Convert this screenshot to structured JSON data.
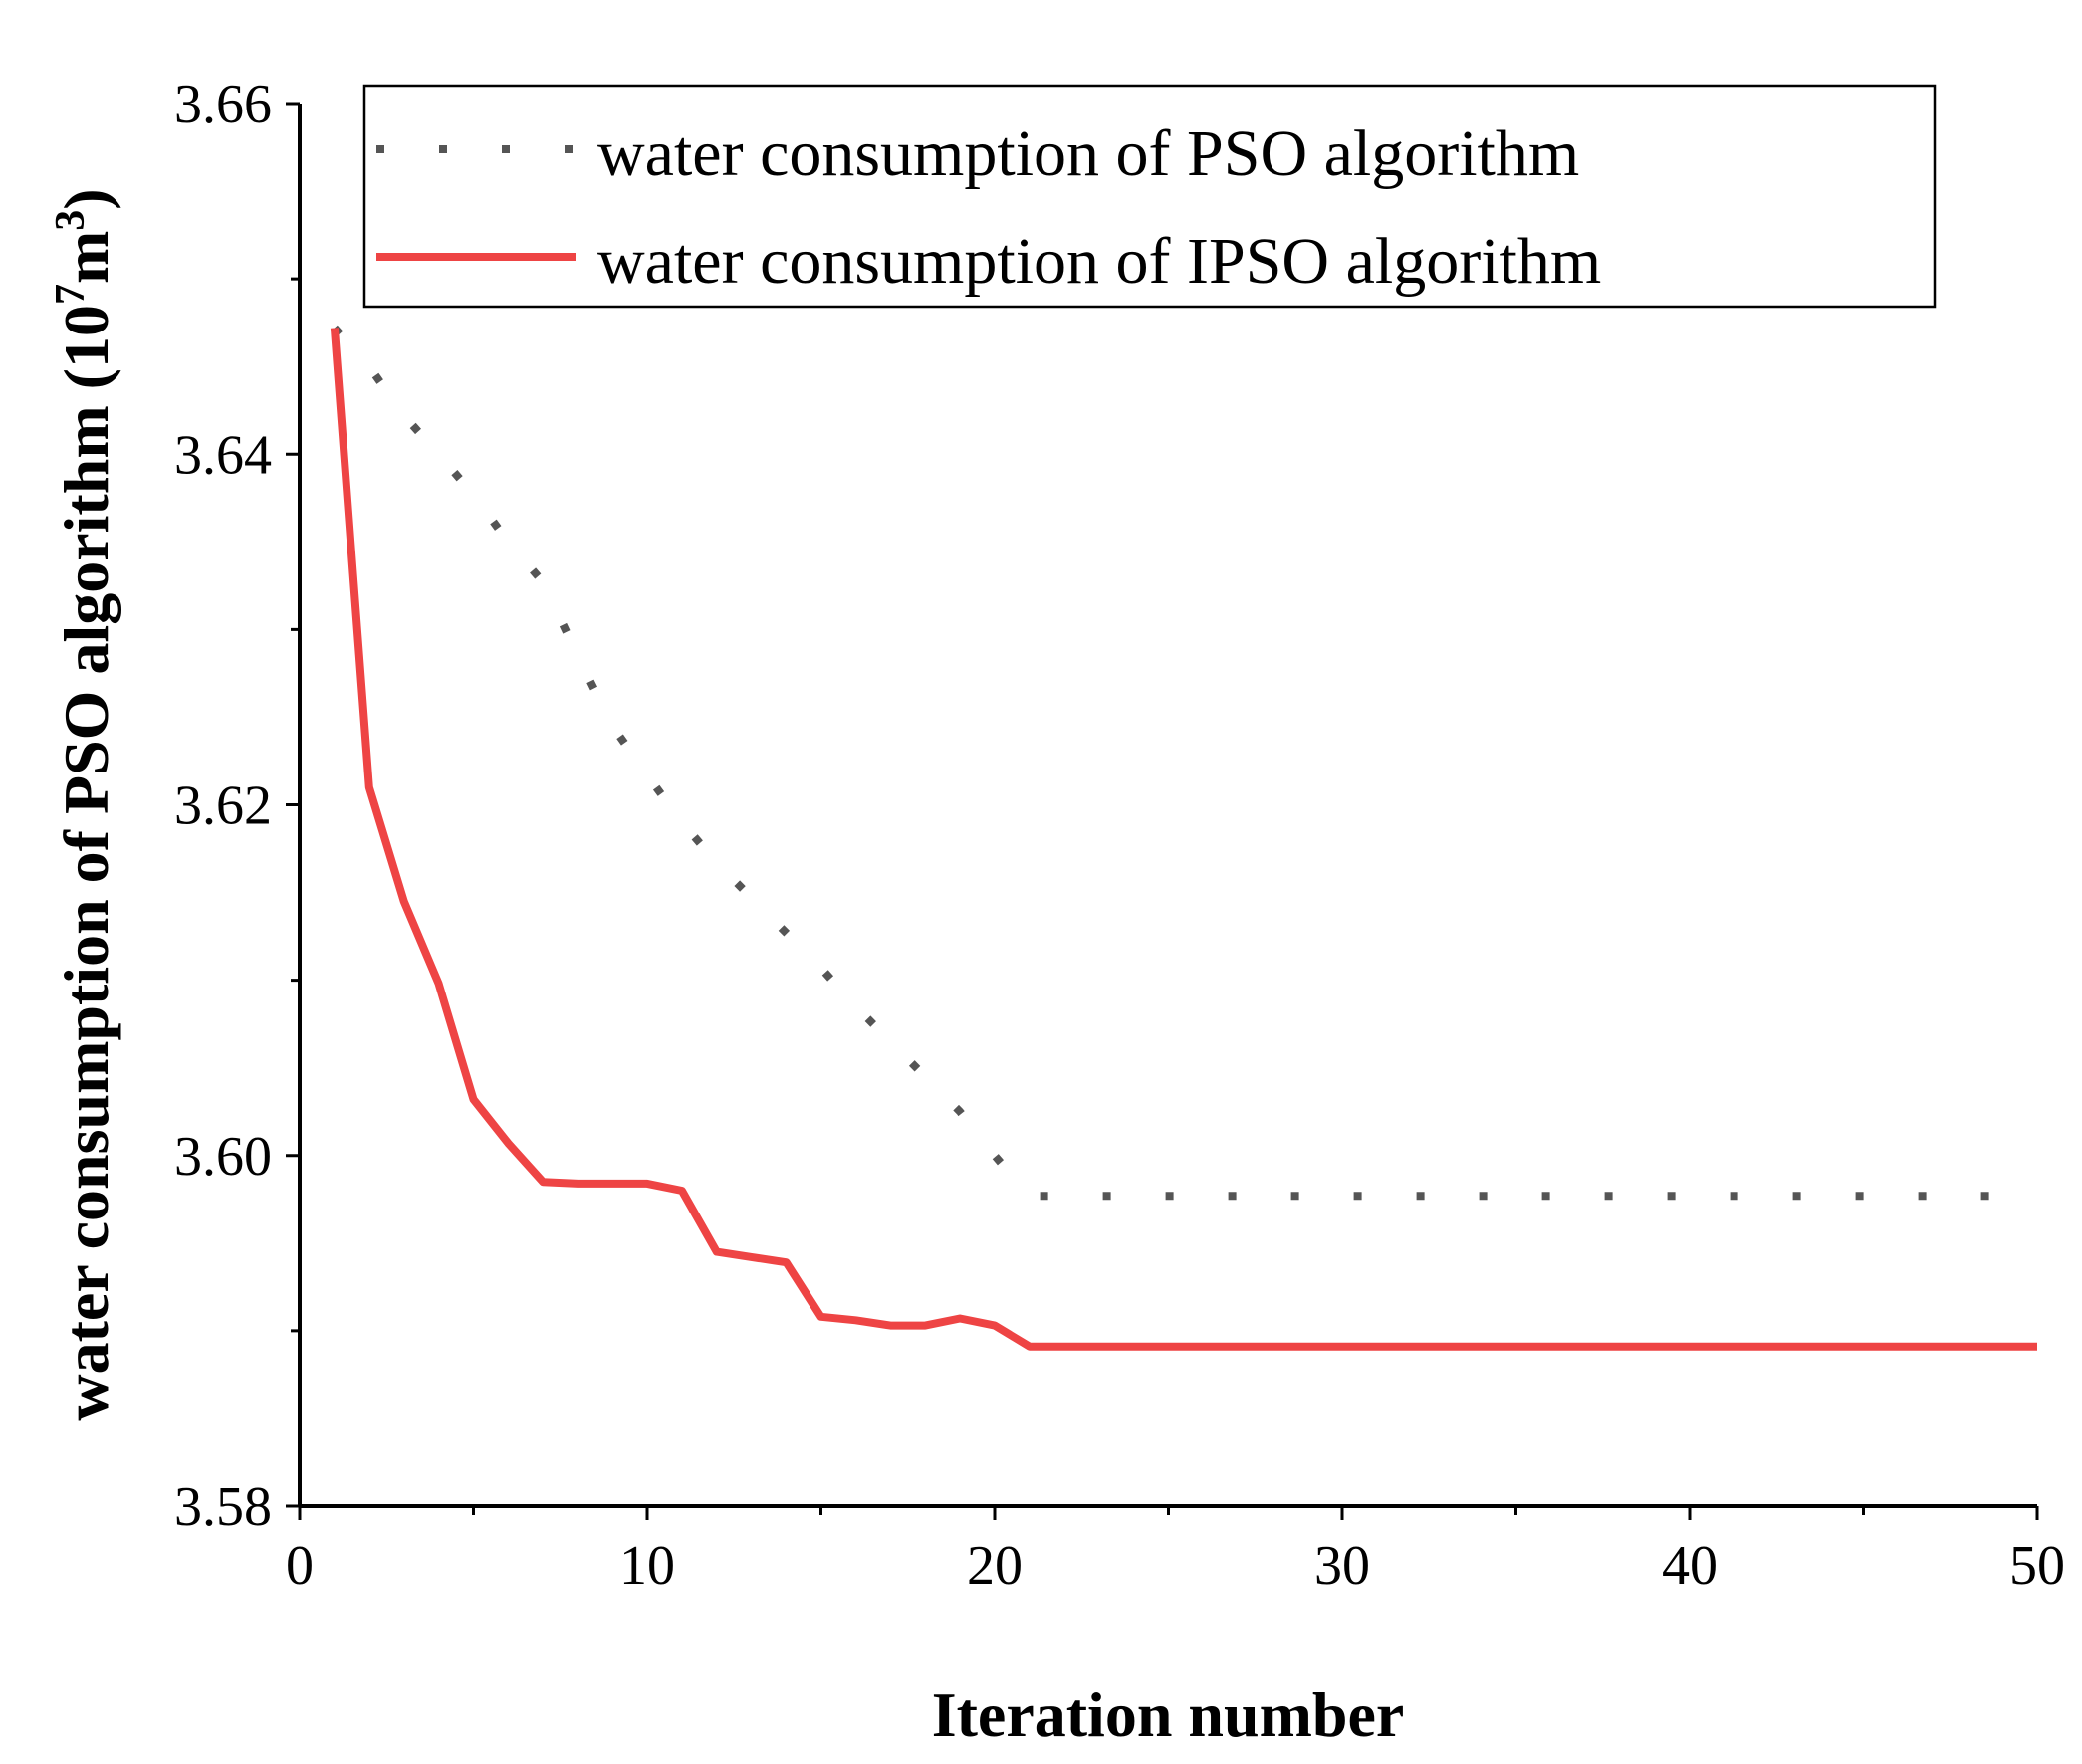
{
  "chart_data": {
    "type": "line",
    "title": "",
    "xlabel": "Iteration number",
    "ylabel_main": "water consumption of PSO algorithm (10",
    "ylabel_exp1": "7",
    "ylabel_unit": "m",
    "ylabel_exp2": "3",
    "ylabel_close": ")",
    "xlim": [
      0,
      50
    ],
    "ylim": [
      3.58,
      3.66
    ],
    "xticks": [
      "0",
      "10",
      "20",
      "30",
      "40",
      "50"
    ],
    "yticks": [
      "3.58",
      "3.60",
      "3.62",
      "3.64",
      "3.66"
    ],
    "legend_position": "top-right",
    "series": [
      {
        "name": "water consumption of PSO algorithm",
        "style": "dotted",
        "color": "#555555",
        "x": [
          1,
          2,
          3,
          4,
          5,
          6,
          7,
          8,
          9,
          10,
          11,
          12,
          13,
          14,
          15,
          16,
          17,
          18,
          19,
          20,
          21,
          22,
          23,
          24,
          25,
          26,
          27,
          28,
          29,
          30,
          31,
          32,
          33,
          34,
          35,
          36,
          37,
          38,
          39,
          40,
          41,
          42,
          43,
          44,
          45,
          46,
          47,
          48,
          49,
          50
        ],
        "values": [
          3.6472,
          3.645,
          3.6422,
          3.64,
          3.6377,
          3.635,
          3.6327,
          3.6285,
          3.6245,
          3.6217,
          3.619,
          3.6167,
          3.6147,
          3.6127,
          3.6107,
          3.6085,
          3.6065,
          3.6045,
          3.6025,
          3.6,
          3.5977,
          3.5977,
          3.5977,
          3.5977,
          3.5977,
          3.5977,
          3.5977,
          3.5977,
          3.5977,
          3.5977,
          3.5977,
          3.5977,
          3.5977,
          3.5977,
          3.5977,
          3.5977,
          3.5977,
          3.5977,
          3.5977,
          3.5977,
          3.5977,
          3.5977,
          3.5977,
          3.5977,
          3.5977,
          3.5977,
          3.5977,
          3.5977,
          3.5977,
          3.5977
        ]
      },
      {
        "name": "water consumption of IPSO algorithm",
        "style": "solid",
        "color": "#EE4444",
        "x": [
          1,
          2,
          3,
          4,
          5,
          6,
          7,
          8,
          9,
          10,
          11,
          12,
          13,
          14,
          15,
          16,
          17,
          18,
          19,
          20,
          21,
          22,
          23,
          24,
          25,
          26,
          27,
          28,
          29,
          30,
          31,
          32,
          33,
          34,
          35,
          36,
          37,
          38,
          39,
          40,
          41,
          42,
          43,
          44,
          45,
          46,
          47,
          48,
          49,
          50
        ],
        "values": [
          3.6472,
          3.621,
          3.6145,
          3.6098,
          3.6032,
          3.6007,
          3.5985,
          3.5984,
          3.5984,
          3.5984,
          3.598,
          3.5945,
          3.5942,
          3.5939,
          3.5908,
          3.5906,
          3.5903,
          3.5903,
          3.5907,
          3.5903,
          3.5891,
          3.5891,
          3.5891,
          3.5891,
          3.5891,
          3.5891,
          3.5891,
          3.5891,
          3.5891,
          3.5891,
          3.5891,
          3.5891,
          3.5891,
          3.5891,
          3.5891,
          3.5891,
          3.5891,
          3.5891,
          3.5891,
          3.5891,
          3.5891,
          3.5891,
          3.5891,
          3.5891,
          3.5891,
          3.5891,
          3.5891,
          3.5891,
          3.5891,
          3.5891
        ]
      }
    ]
  }
}
